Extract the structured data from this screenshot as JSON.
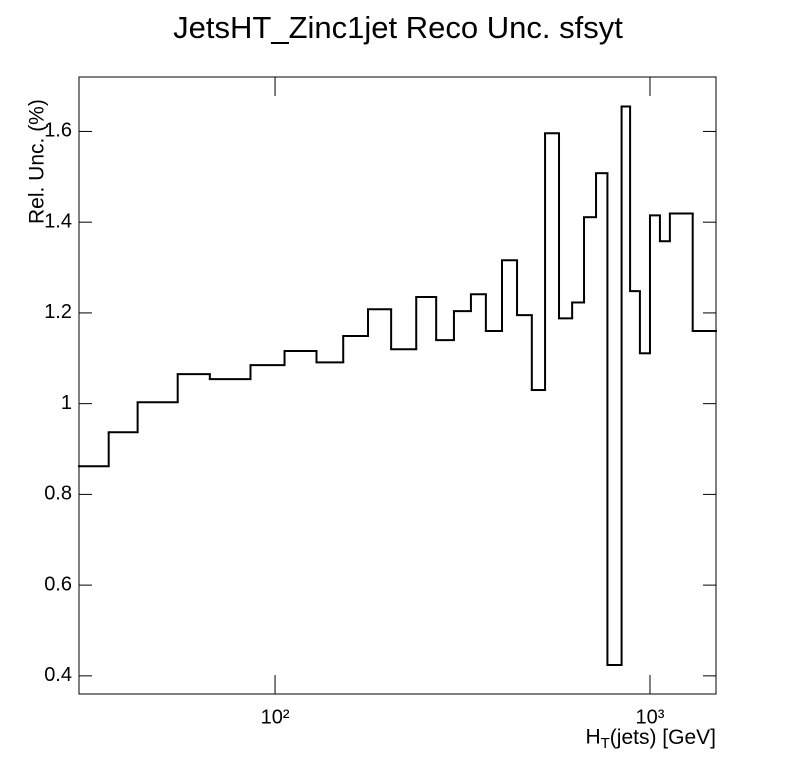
{
  "chart_data": {
    "type": "histogram",
    "title": "JetsHT_Zinc1jet Reco Unc. sfsyt",
    "x_label": "H_T(jets) [GeV]",
    "y_label": "Rel. Unc. (%)",
    "bins": [
      30,
      36,
      43,
      55,
      67,
      86,
      106,
      129,
      152,
      177,
      204,
      238,
      269,
      300,
      333,
      365,
      403,
      442,
      484,
      525,
      572,
      620,
      667,
      718,
      770,
      840,
      885,
      940,
      1000,
      1063,
      1130,
      1300,
      1500
    ],
    "values": [
      0.862,
      0.937,
      1.003,
      1.065,
      1.054,
      1.085,
      1.116,
      1.091,
      1.149,
      1.208,
      1.12,
      1.235,
      1.14,
      1.204,
      1.241,
      1.16,
      1.316,
      1.195,
      1.03,
      1.596,
      1.188,
      1.223,
      1.411,
      1.508,
      0.424,
      1.655,
      1.248,
      1.111,
      1.415,
      1.358,
      1.419,
      1.16
    ],
    "color": "#000000",
    "xlim": [
      30,
      1500
    ],
    "ylim": [
      0.36,
      1.72
    ],
    "x_log": true,
    "xticks": [
      {
        "value": 100,
        "label": "10²"
      },
      {
        "value": 1000,
        "label": "10³"
      }
    ],
    "yticks": [
      0.4,
      0.6,
      0.8,
      1,
      1.2,
      1.4,
      1.6
    ],
    "grid": false
  }
}
